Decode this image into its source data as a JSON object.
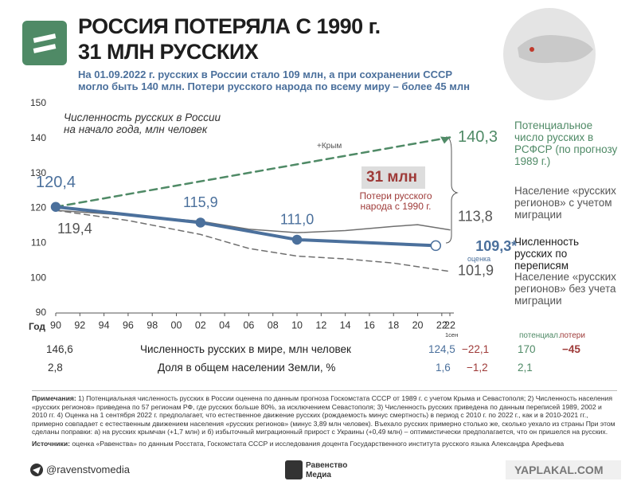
{
  "header": {
    "title_lines": [
      "РОССИЯ ПОТЕРЯЛА С 1990 г.",
      "31 МЛН РУССКИХ"
    ],
    "subtitle_lines": [
      "На 01.09.2022 г. русских в России стало 109 млн, а при сохранении СССР",
      "могло быть 140 млн. Потери русского народа по всему миру – более 45 млн"
    ]
  },
  "chart_data": {
    "type": "line",
    "plot_title": "Численность русских в России на начало года, млн человек",
    "x_label": "Год",
    "x_last_note": "1сен",
    "xlim": [
      1990,
      2022.67
    ],
    "xticks": [
      {
        "value": 1990,
        "label": "90"
      },
      {
        "value": 1992,
        "label": "92"
      },
      {
        "value": 1994,
        "label": "94"
      },
      {
        "value": 1996,
        "label": "96"
      },
      {
        "value": 1998,
        "label": "98"
      },
      {
        "value": 2000,
        "label": "00"
      },
      {
        "value": 2002,
        "label": "02"
      },
      {
        "value": 2004,
        "label": "04"
      },
      {
        "value": 2006,
        "label": "06"
      },
      {
        "value": 2008,
        "label": "08"
      },
      {
        "value": 2010,
        "label": "10"
      },
      {
        "value": 2012,
        "label": "12"
      },
      {
        "value": 2014,
        "label": "14"
      },
      {
        "value": 2016,
        "label": "16"
      },
      {
        "value": 2018,
        "label": "18"
      },
      {
        "value": 2020,
        "label": "20"
      },
      {
        "value": 2022,
        "label": "22"
      },
      {
        "value": 2022.67,
        "label": "22"
      }
    ],
    "ylim": [
      90,
      150
    ],
    "yticks": [
      90,
      100,
      110,
      120,
      130,
      140,
      150
    ],
    "grid": false,
    "series": [
      {
        "name": "Численность русских по переписям",
        "color": "#4b709c",
        "style": "solid-thick",
        "markers": true,
        "x": [
          1990,
          2002,
          2010,
          2021.5
        ],
        "values": [
          120.4,
          115.9,
          111.0,
          109.3
        ],
        "value_labels": [
          "120,4",
          "115,9",
          "111,0",
          "109,3*"
        ]
      },
      {
        "name": "Население «русских регионов» с учетом миграции",
        "color": "#6f6f6f",
        "style": "solid-thin",
        "markers": false,
        "x": [
          1990,
          1996,
          2002,
          2006,
          2010,
          2014,
          2018,
          2020,
          2022.67
        ],
        "values": [
          119.4,
          118.0,
          116.3,
          114.0,
          113.0,
          113.6,
          114.8,
          115.3,
          113.8
        ],
        "value_labels": [
          "119,4",
          null,
          null,
          null,
          null,
          null,
          null,
          null,
          "113,8"
        ]
      },
      {
        "name": "Население «русских регионов» без учета миграции",
        "color": "#6f6f6f",
        "style": "dashed",
        "markers": false,
        "x": [
          1990,
          1996,
          2002,
          2006,
          2010,
          2014,
          2018,
          2022.67
        ],
        "values": [
          119.4,
          116.5,
          112.5,
          108.5,
          106.3,
          105.5,
          104.3,
          101.9
        ],
        "value_labels": [
          null,
          null,
          null,
          null,
          null,
          null,
          null,
          "101,9"
        ]
      },
      {
        "name": "Потенциальное число русских в РСФСР (по прогнозу 1989 г.)",
        "color": "#4f8a66",
        "style": "dashed-thick",
        "markers": false,
        "x": [
          1990,
          2022.67
        ],
        "values": [
          120.4,
          140.3
        ],
        "value_labels": [
          null,
          "140,3"
        ]
      }
    ],
    "annotations": {
      "crimea": "+Крым",
      "loss_value": "31 млн",
      "loss_text": "Потери русского народа с 1990 г.",
      "estimate": "оценка"
    }
  },
  "table": {
    "header": [
      "потенциал.",
      "потери"
    ],
    "rows": [
      [
        "146,6",
        "Численность русских в мире, млн человек",
        "124,5",
        "−22,1",
        "170",
        "−45"
      ],
      [
        "2,8",
        "Доля в общем населении Земли, %",
        "1,6",
        "−1,2",
        "2,1"
      ]
    ]
  },
  "notes": {
    "label": "Примечания:",
    "text": "1) Потенциальная численность русских в России оценена по данным прогноза Госкомстата СССР от 1989 г. с учетом Крыма и Севастополя; 2) Численность населения «русских регионов» приведена по 57 регионам РФ, где русских больше 80%, за исключением Севастополя; 3) Численность русских приведена по данным переписей 1989, 2002 и 2010 гг. 4) Оценка на 1 сентября 2022 г. предполагает, что естественное движение русских (рождаемость минус смертность) в период с 2010 г. по 2022 г., как и в 2010-2021 гг., примерно совпадает с естественным движением населения «русских регионов» (минус 3,89 млн человек). Въехало русских примерно столько же, сколько уехало из страны При этом сделаны поправки: а) на русских крымчан (+1,7 млн) и б) избыточный миграционный прирост с Украины (+0,49 млн) – оптимистически предполагается, что он пришелся на русских.",
    "sources_label": "Источники:",
    "sources_text": "оценка «Равенства» по данным Росстата, Госкомстата СССР и исследования доцента Государственного института русского языка Александра Арефьева"
  },
  "footer": {
    "handle": "@ravenstvomedia",
    "brand_lines": [
      "Равенство",
      "Медиа"
    ],
    "watermark": "YAPLAKAL.COM"
  }
}
